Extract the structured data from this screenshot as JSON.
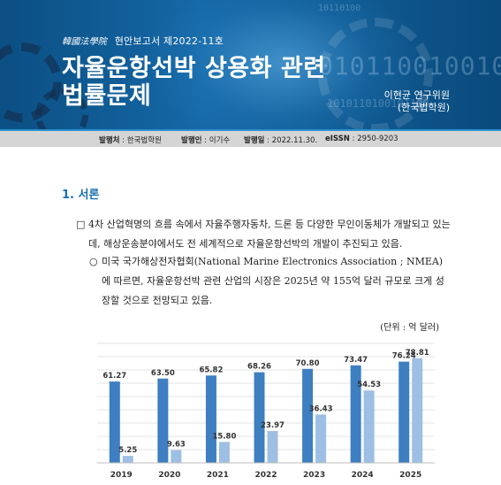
{
  "header": {
    "logo": "韓國法學院",
    "series": "현안보고서 제2022-11호",
    "title_line1": "자율운항선박 상용화 관련",
    "title_line2": "법률문제",
    "author_name": "이현균 연구위원",
    "author_org": "(한국법학원)",
    "binary_large": "010110010010",
    "binary_small": "1010110100101100",
    "binary_top": "10110100"
  },
  "info": {
    "publisher_label": "발행처",
    "publisher": "한국법학원",
    "issuer_label": "발행인",
    "issuer": "이기수",
    "date_label": "발행일",
    "date": "2022.11.30.",
    "issn_label": "eISSN",
    "issn": "2950-9203"
  },
  "section": {
    "title": "1. 서론"
  },
  "paragraphs": {
    "p1_bullet": "□",
    "p1": "4차 산업혁명의 흐름 속에서 자율주행자동차, 드론 등 다양한 무인이동체가 개발되고 있는데, 해상운송분야에서도 전 세계적으로 자율운항선박의 개발이 추진되고 있음.",
    "p2_bullet": "○",
    "p2": "미국 국가해상전자협회(National Marine Electronics Association ; NMEA)에 따르면, 자율운항선박 관련 산업의 시장은 2025년 약 155억 달러 규모로 크게 성장할 것으로 전망되고 있음."
  },
  "unit_label": "(단위 : 억 달러)",
  "colors": {
    "banner": "#1568a6",
    "section_title": "#1a6fb0",
    "bar_dark": "#3d7fc1",
    "bar_light": "#9dbfe3"
  },
  "chart_data": {
    "type": "bar",
    "title": "",
    "xlabel": "",
    "ylabel": "",
    "categories": [
      "2019",
      "2020",
      "2021",
      "2022",
      "2023",
      "2024",
      "2025"
    ],
    "series": [
      {
        "values": [
          61.27,
          63.5,
          65.82,
          68.26,
          70.8,
          73.47,
          76.24
        ]
      },
      {
        "values": [
          5.25,
          9.63,
          15.8,
          23.97,
          36.43,
          54.53,
          78.81
        ]
      }
    ],
    "ylim": [
      0,
      90
    ],
    "grid": true,
    "legend": "none"
  }
}
